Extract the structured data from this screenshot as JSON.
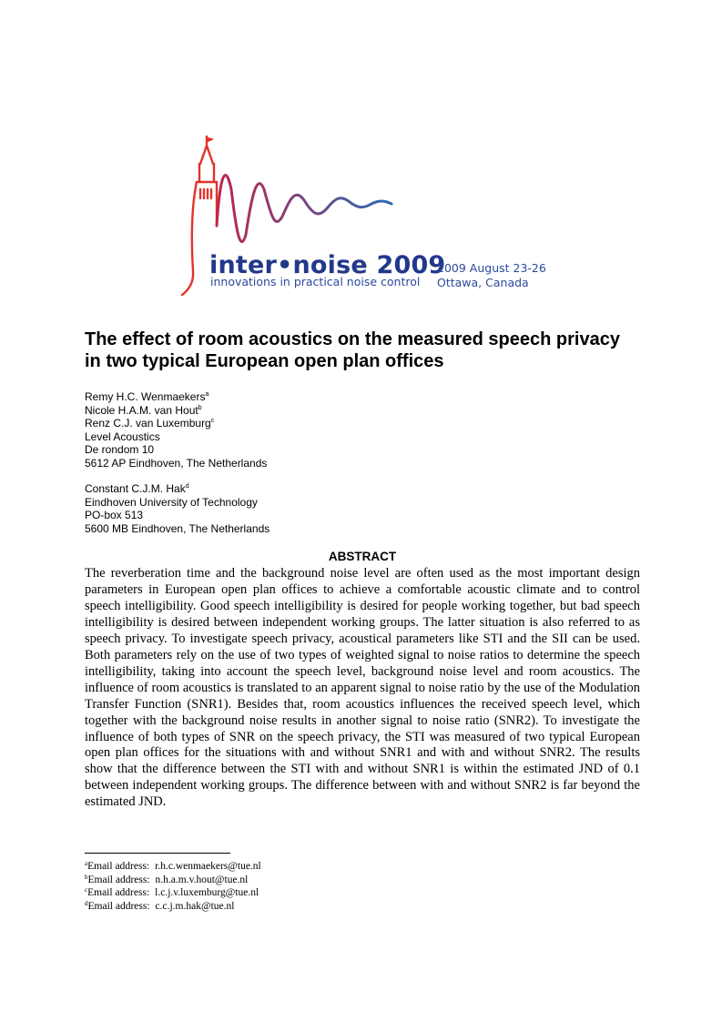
{
  "logo": {
    "name": "inter•noise 2009",
    "tagline": "innovations in practical noise control",
    "date": "2009 August 23-26",
    "place": "Ottawa, Canada",
    "colors": {
      "tower": "#e2332a",
      "wave_start": "#c3234e",
      "wave_end": "#2a6ab3",
      "text": "#22388a"
    }
  },
  "title": "The effect of room acoustics on the measured speech privacy in two typical European open plan offices",
  "authors_block1": [
    {
      "text": "Remy H.C. Wenmaekers",
      "sup": "a"
    },
    {
      "text": "Nicole H.A.M. van Hout",
      "sup": "b"
    },
    {
      "text": "Renz C.J. van Luxemburg",
      "sup": "c"
    },
    {
      "text": "Level Acoustics",
      "sup": ""
    },
    {
      "text": "De rondom 10",
      "sup": ""
    },
    {
      "text": "5612 AP Eindhoven, The Netherlands",
      "sup": ""
    }
  ],
  "authors_block2": [
    {
      "text": "Constant C.J.M. Hak",
      "sup": "d"
    },
    {
      "text": "Eindhoven University of Technology",
      "sup": ""
    },
    {
      "text": "PO-box 513",
      "sup": ""
    },
    {
      "text": "5600 MB Eindhoven, The Netherlands",
      "sup": ""
    }
  ],
  "abstract_heading": "ABSTRACT",
  "abstract": "The reverberation time and the background noise level are often used as the most important design parameters in European open plan offices to achieve a comfortable acoustic climate and to control speech intelligibility. Good speech intelligibility is desired for people working together, but bad speech intelligibility is desired between independent working groups. The latter situation is also referred to as speech privacy. To investigate speech privacy, acoustical parameters like STI and the SII can be used. Both parameters rely on the use of two types of weighted signal to noise ratios to determine the speech intelligibility, taking into account the speech level, background noise level and room acoustics. The influence of room acoustics is translated to an apparent signal to noise ratio by the use of the Modulation Transfer Function (SNR1). Besides that, room acoustics influences the received speech level, which together with the background noise results in another signal to noise ratio (SNR2). To investigate the influence of both types of SNR on the speech privacy, the STI was measured of two typical European open plan offices for the situations with and without SNR1 and with and without SNR2. The results show that the difference between the STI with and without SNR1 is within the estimated JND of 0.1 between independent working groups. The difference between with and without SNR2 is far beyond the estimated JND.",
  "footnotes": [
    {
      "mark": "a",
      "label": "Email address:",
      "email": "r.h.c.wenmaekers@tue.nl"
    },
    {
      "mark": "b",
      "label": "Email address:",
      "email": "n.h.a.m.v.hout@tue.nl"
    },
    {
      "mark": "c",
      "label": "Email address:",
      "email": "l.c.j.v.luxemburg@tue.nl"
    },
    {
      "mark": "d",
      "label": "Email address:",
      "email": "c.c.j.m.hak@tue.nl"
    }
  ]
}
